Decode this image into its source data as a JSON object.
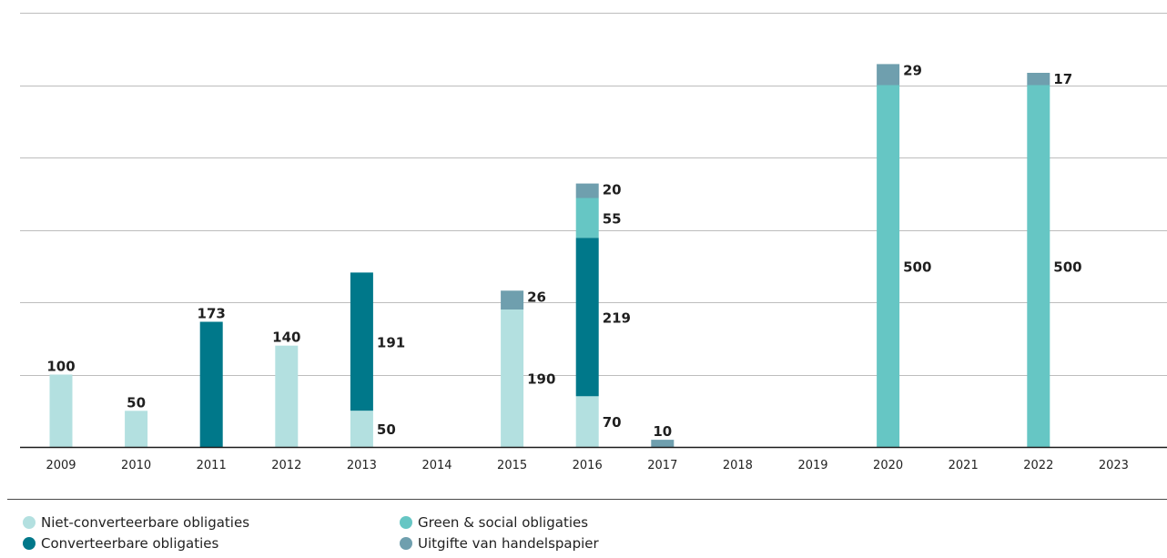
{
  "chart_data": {
    "type": "bar",
    "stacked": true,
    "categories": [
      "2009",
      "2010",
      "2011",
      "2012",
      "2013",
      "2014",
      "2015",
      "2016",
      "2017",
      "2018",
      "2019",
      "2020",
      "2021",
      "2022",
      "2023"
    ],
    "series": [
      {
        "name": "Niet-converteerbare obligaties",
        "color": "#b3e0e0",
        "values": [
          100,
          50,
          0,
          140,
          50,
          0,
          190,
          70,
          0,
          0,
          0,
          0,
          0,
          0,
          0
        ]
      },
      {
        "name": "Converteerbare obligaties",
        "color": "#00788a",
        "values": [
          0,
          0,
          173,
          0,
          191,
          0,
          0,
          219,
          0,
          0,
          0,
          0,
          0,
          0,
          0
        ]
      },
      {
        "name": "Green & social obligaties",
        "color": "#66c6c4",
        "values": [
          0,
          0,
          0,
          0,
          0,
          0,
          0,
          55,
          0,
          0,
          0,
          500,
          0,
          500,
          0
        ]
      },
      {
        "name": "Uitgifte van handelspapier",
        "color": "#6f9fae",
        "values": [
          0,
          0,
          0,
          0,
          0,
          0,
          26,
          20,
          10,
          0,
          0,
          29,
          0,
          17,
          0
        ]
      }
    ],
    "data_labels": [
      {
        "category": "2009",
        "series": 0,
        "text": "100",
        "position": "top"
      },
      {
        "category": "2010",
        "series": 0,
        "text": "50",
        "position": "top"
      },
      {
        "category": "2011",
        "series": 1,
        "text": "173",
        "position": "top"
      },
      {
        "category": "2012",
        "series": 0,
        "text": "140",
        "position": "top"
      },
      {
        "category": "2013",
        "series": 0,
        "text": "50",
        "position": "right"
      },
      {
        "category": "2013",
        "series": 1,
        "text": "191",
        "position": "right"
      },
      {
        "category": "2015",
        "series": 0,
        "text": "190",
        "position": "right"
      },
      {
        "category": "2015",
        "series": 3,
        "text": "26",
        "position": "right"
      },
      {
        "category": "2016",
        "series": 0,
        "text": "70",
        "position": "right"
      },
      {
        "category": "2016",
        "series": 1,
        "text": "219",
        "position": "right"
      },
      {
        "category": "2016",
        "series": 2,
        "text": "55",
        "position": "right"
      },
      {
        "category": "2016",
        "series": 3,
        "text": "20",
        "position": "right"
      },
      {
        "category": "2017",
        "series": 3,
        "text": "10",
        "position": "top"
      },
      {
        "category": "2020",
        "series": 2,
        "text": "500",
        "position": "right"
      },
      {
        "category": "2020",
        "series": 3,
        "text": "29",
        "position": "right"
      },
      {
        "category": "2022",
        "series": 2,
        "text": "500",
        "position": "right"
      },
      {
        "category": "2022",
        "series": 3,
        "text": "17",
        "position": "right"
      }
    ],
    "ylim": [
      0,
      600
    ],
    "gridlines": [
      100,
      200,
      300,
      400,
      500,
      600
    ],
    "grid": true,
    "title": "",
    "xlabel": "",
    "ylabel": "",
    "legend": {
      "placement": "bottom-left",
      "columns": 2,
      "items": [
        "Niet-converteerbare obligaties",
        "Green & social obligaties",
        "Converteerbare obligaties",
        "Uitgifte van handelspapier"
      ]
    }
  }
}
